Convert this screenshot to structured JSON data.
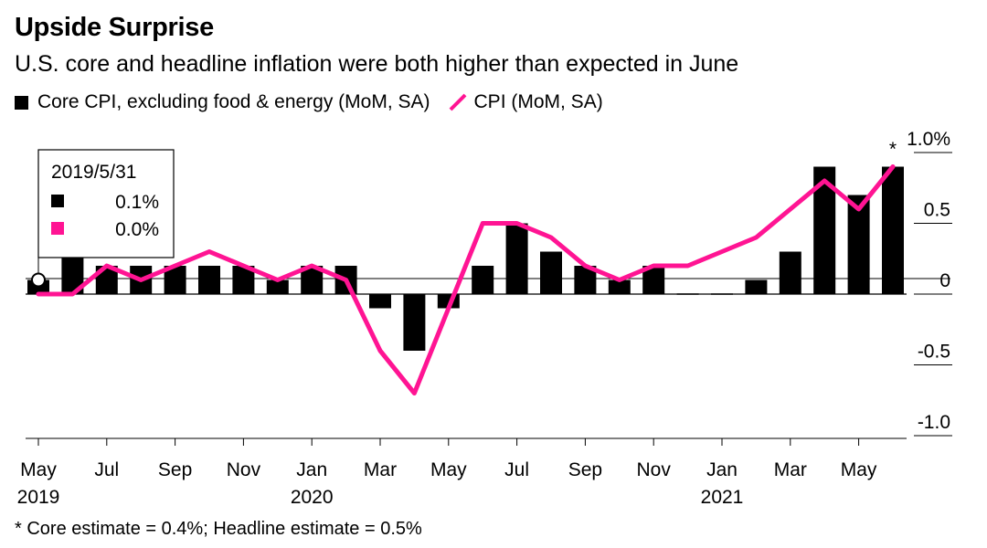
{
  "chart_data": {
    "type": "bar+line",
    "title": "Upside Surprise",
    "subtitle": "U.S. core and headline inflation were both higher than expected in June",
    "legend": [
      {
        "name": "Core CPI, excluding food & energy (MoM, SA)",
        "type": "bar",
        "color": "#000000"
      },
      {
        "name": "CPI (MoM, SA)",
        "type": "line",
        "color": "#ff1493"
      }
    ],
    "legend_position": "top-left",
    "months": [
      "2019-05",
      "2019-06",
      "2019-07",
      "2019-08",
      "2019-09",
      "2019-10",
      "2019-11",
      "2019-12",
      "2020-01",
      "2020-02",
      "2020-03",
      "2020-04",
      "2020-05",
      "2020-06",
      "2020-07",
      "2020-08",
      "2020-09",
      "2020-10",
      "2020-11",
      "2020-12",
      "2021-01",
      "2021-02",
      "2021-03",
      "2021-04",
      "2021-05",
      "2021-06"
    ],
    "series": [
      {
        "name": "Core CPI, excluding food & energy (MoM, SA)",
        "values": [
          0.1,
          0.3,
          0.2,
          0.2,
          0.2,
          0.2,
          0.2,
          0.1,
          0.2,
          0.2,
          -0.1,
          -0.4,
          -0.1,
          0.2,
          0.5,
          0.3,
          0.2,
          0.1,
          0.2,
          0.0,
          0.0,
          0.1,
          0.3,
          0.9,
          0.7,
          0.9
        ]
      },
      {
        "name": "CPI (MoM, SA)",
        "values": [
          0.0,
          0.0,
          0.2,
          0.1,
          0.2,
          0.3,
          0.2,
          0.1,
          0.2,
          0.1,
          -0.4,
          -0.7,
          -0.1,
          0.5,
          0.5,
          0.4,
          0.2,
          0.1,
          0.2,
          0.2,
          0.3,
          0.4,
          0.6,
          0.8,
          0.6,
          0.9
        ]
      }
    ],
    "x_tick_labels": [
      {
        "month": "2019-05",
        "label": "May",
        "year": "2019"
      },
      {
        "month": "2019-07",
        "label": "Jul",
        "year": ""
      },
      {
        "month": "2019-09",
        "label": "Sep",
        "year": ""
      },
      {
        "month": "2019-11",
        "label": "Nov",
        "year": ""
      },
      {
        "month": "2020-01",
        "label": "Jan",
        "year": "2020"
      },
      {
        "month": "2020-03",
        "label": "Mar",
        "year": ""
      },
      {
        "month": "2020-05",
        "label": "May",
        "year": ""
      },
      {
        "month": "2020-07",
        "label": "Jul",
        "year": ""
      },
      {
        "month": "2020-09",
        "label": "Sep",
        "year": ""
      },
      {
        "month": "2020-11",
        "label": "Nov",
        "year": ""
      },
      {
        "month": "2021-01",
        "label": "Jan",
        "year": "2021"
      },
      {
        "month": "2021-03",
        "label": "Mar",
        "year": ""
      },
      {
        "month": "2021-05",
        "label": "May",
        "year": ""
      }
    ],
    "y_ticks": [
      {
        "value": 1.0,
        "label": "1.0%"
      },
      {
        "value": 0.5,
        "label": "0.5"
      },
      {
        "value": 0.0,
        "label": "0"
      },
      {
        "value": -0.5,
        "label": "-0.5"
      },
      {
        "value": -1.0,
        "label": "-1.0"
      }
    ],
    "ylim": [
      -1.0,
      1.0
    ],
    "y_axis_side": "right",
    "grid": false,
    "tooltip": {
      "month": "2019-05",
      "date": "2019/5/31",
      "core": "0.1%",
      "cpi": "0.0%"
    },
    "annotation": {
      "month": "2021-06",
      "text": "*"
    },
    "footnote": "* Core estimate = 0.4%; Headline estimate = 0.5%",
    "colors": {
      "core": "#000000",
      "cpi": "#ff1493",
      "axis": "#000000"
    }
  }
}
